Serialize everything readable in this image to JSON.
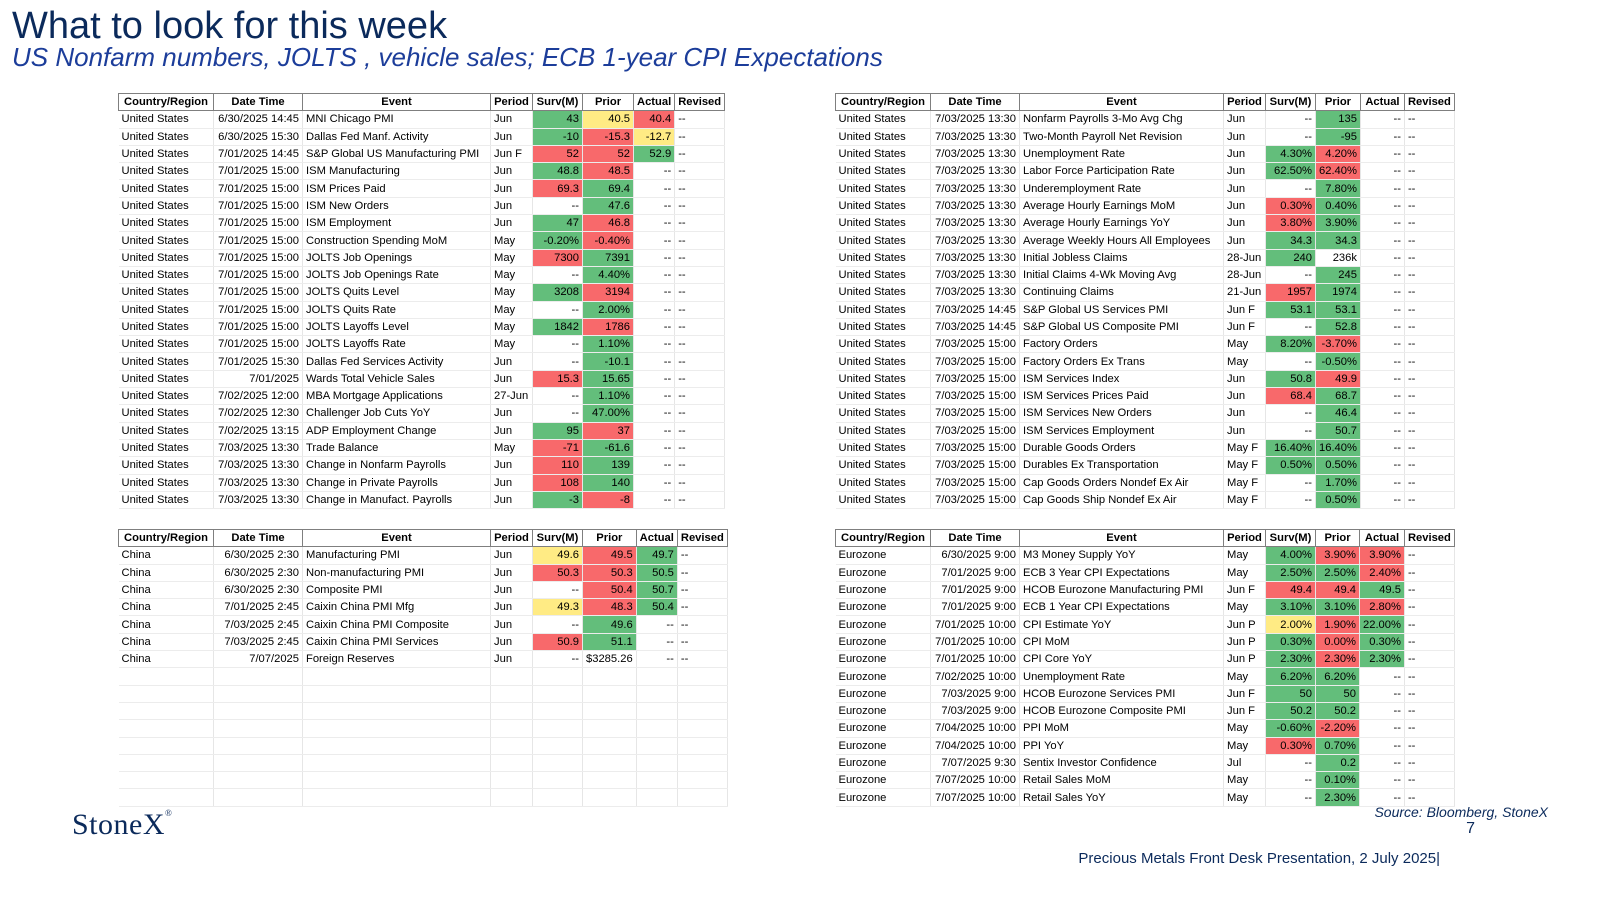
{
  "title": "What to look for this week",
  "subtitle": "US Nonfarm numbers, JOLTS , vehicle sales; ECB 1-year CPI Expectations",
  "headers": [
    "Country/Region",
    "Date Time",
    "Event",
    "Period",
    "Surv(M)",
    "Prior",
    "Actual",
    "Revised"
  ],
  "colors": {
    "green": "#63be7b",
    "red": "#f8696b",
    "yellow": "#ffeb84",
    "title": "#0b2a5b"
  },
  "tables": [
    {
      "id": "us-left",
      "rows": [
        [
          "United States",
          "6/30/2025 14:45",
          "MNI Chicago PMI",
          "Jun",
          "43",
          "40.5",
          "40.4",
          "--"
        ],
        [
          "United States",
          "6/30/2025 15:30",
          "Dallas Fed Manf. Activity",
          "Jun",
          "-10",
          "-15.3",
          "-12.7",
          "--"
        ],
        [
          "United States",
          "7/01/2025 14:45",
          "S&P Global US Manufacturing PMI",
          "Jun F",
          "52",
          "52",
          "52.9",
          "--"
        ],
        [
          "United States",
          "7/01/2025 15:00",
          "ISM Manufacturing",
          "Jun",
          "48.8",
          "48.5",
          "--",
          "--"
        ],
        [
          "United States",
          "7/01/2025 15:00",
          "ISM Prices Paid",
          "Jun",
          "69.3",
          "69.4",
          "--",
          "--"
        ],
        [
          "United States",
          "7/01/2025 15:00",
          "ISM New Orders",
          "Jun",
          "--",
          "47.6",
          "--",
          "--"
        ],
        [
          "United States",
          "7/01/2025 15:00",
          "ISM Employment",
          "Jun",
          "47",
          "46.8",
          "--",
          "--"
        ],
        [
          "United States",
          "7/01/2025 15:00",
          "Construction Spending MoM",
          "May",
          "-0.20%",
          "-0.40%",
          "--",
          "--"
        ],
        [
          "United States",
          "7/01/2025 15:00",
          "JOLTS Job Openings",
          "May",
          "7300",
          "7391",
          "--",
          "--"
        ],
        [
          "United States",
          "7/01/2025 15:00",
          "JOLTS Job Openings Rate",
          "May",
          "--",
          "4.40%",
          "--",
          "--"
        ],
        [
          "United States",
          "7/01/2025 15:00",
          "JOLTS Quits Level",
          "May",
          "3208",
          "3194",
          "--",
          "--"
        ],
        [
          "United States",
          "7/01/2025 15:00",
          "JOLTS Quits Rate",
          "May",
          "--",
          "2.00%",
          "--",
          "--"
        ],
        [
          "United States",
          "7/01/2025 15:00",
          "JOLTS Layoffs Level",
          "May",
          "1842",
          "1786",
          "--",
          "--"
        ],
        [
          "United States",
          "7/01/2025 15:00",
          "JOLTS Layoffs Rate",
          "May",
          "--",
          "1.10%",
          "--",
          "--"
        ],
        [
          "United States",
          "7/01/2025 15:30",
          "Dallas Fed Services Activity",
          "Jun",
          "--",
          "-10.1",
          "--",
          "--"
        ],
        [
          "United States",
          "7/01/2025",
          "Wards Total Vehicle Sales",
          "Jun",
          "15.3",
          "15.65",
          "--",
          "--"
        ],
        [
          "United States",
          "7/02/2025 12:00",
          "MBA Mortgage Applications",
          "27-Jun",
          "--",
          "1.10%",
          "--",
          "--"
        ],
        [
          "United States",
          "7/02/2025 12:30",
          "Challenger Job Cuts YoY",
          "Jun",
          "--",
          "47.00%",
          "--",
          "--"
        ],
        [
          "United States",
          "7/02/2025 13:15",
          "ADP Employment Change",
          "Jun",
          "95",
          "37",
          "--",
          "--"
        ],
        [
          "United States",
          "7/03/2025 13:30",
          "Trade Balance",
          "May",
          "-71",
          "-61.6",
          "--",
          "--"
        ],
        [
          "United States",
          "7/03/2025 13:30",
          "Change in Nonfarm Payrolls",
          "Jun",
          "110",
          "139",
          "--",
          "--"
        ],
        [
          "United States",
          "7/03/2025 13:30",
          "Change in Private Payrolls",
          "Jun",
          "108",
          "140",
          "--",
          "--"
        ],
        [
          "United States",
          "7/03/2025 13:30",
          "Change in Manufact. Payrolls",
          "Jun",
          "-3",
          "-8",
          "--",
          "--"
        ]
      ]
    },
    {
      "id": "us-right",
      "rows": [
        [
          "United States",
          "7/03/2025 13:30",
          "Nonfarm Payrolls 3-Mo Avg Chg",
          "Jun",
          "--",
          "135",
          "--",
          "--"
        ],
        [
          "United States",
          "7/03/2025 13:30",
          "Two-Month Payroll Net Revision",
          "Jun",
          "--",
          "-95",
          "--",
          "--"
        ],
        [
          "United States",
          "7/03/2025 13:30",
          "Unemployment Rate",
          "Jun",
          "4.30%",
          "4.20%",
          "--",
          "--"
        ],
        [
          "United States",
          "7/03/2025 13:30",
          "Labor Force Participation Rate",
          "Jun",
          "62.50%",
          "62.40%",
          "--",
          "--"
        ],
        [
          "United States",
          "7/03/2025 13:30",
          "Underemployment Rate",
          "Jun",
          "--",
          "7.80%",
          "--",
          "--"
        ],
        [
          "United States",
          "7/03/2025 13:30",
          "Average Hourly Earnings MoM",
          "Jun",
          "0.30%",
          "0.40%",
          "--",
          "--"
        ],
        [
          "United States",
          "7/03/2025 13:30",
          "Average Hourly Earnings YoY",
          "Jun",
          "3.80%",
          "3.90%",
          "--",
          "--"
        ],
        [
          "United States",
          "7/03/2025 13:30",
          "Average Weekly Hours All Employees",
          "Jun",
          "34.3",
          "34.3",
          "--",
          "--"
        ],
        [
          "United States",
          "7/03/2025 13:30",
          "Initial Jobless Claims",
          "28-Jun",
          "240",
          "236k",
          "--",
          "--"
        ],
        [
          "United States",
          "7/03/2025 13:30",
          "Initial Claims 4-Wk Moving Avg",
          "28-Jun",
          "--",
          "245",
          "--",
          "--"
        ],
        [
          "United States",
          "7/03/2025 13:30",
          "Continuing Claims",
          "21-Jun",
          "1957",
          "1974",
          "--",
          "--"
        ],
        [
          "United States",
          "7/03/2025 14:45",
          "S&P Global US Services PMI",
          "Jun F",
          "53.1",
          "53.1",
          "--",
          "--"
        ],
        [
          "United States",
          "7/03/2025 14:45",
          "S&P Global US Composite PMI",
          "Jun F",
          "--",
          "52.8",
          "--",
          "--"
        ],
        [
          "United States",
          "7/03/2025 15:00",
          "Factory Orders",
          "May",
          "8.20%",
          "-3.70%",
          "--",
          "--"
        ],
        [
          "United States",
          "7/03/2025 15:00",
          "Factory Orders Ex Trans",
          "May",
          "--",
          "-0.50%",
          "--",
          "--"
        ],
        [
          "United States",
          "7/03/2025 15:00",
          "ISM Services Index",
          "Jun",
          "50.8",
          "49.9",
          "--",
          "--"
        ],
        [
          "United States",
          "7/03/2025 15:00",
          "ISM Services Prices Paid",
          "Jun",
          "68.4",
          "68.7",
          "--",
          "--"
        ],
        [
          "United States",
          "7/03/2025 15:00",
          "ISM Services New Orders",
          "Jun",
          "--",
          "46.4",
          "--",
          "--"
        ],
        [
          "United States",
          "7/03/2025 15:00",
          "ISM Services Employment",
          "Jun",
          "--",
          "50.7",
          "--",
          "--"
        ],
        [
          "United States",
          "7/03/2025 15:00",
          "Durable Goods Orders",
          "May F",
          "16.40%",
          "16.40%",
          "--",
          "--"
        ],
        [
          "United States",
          "7/03/2025 15:00",
          "Durables Ex Transportation",
          "May F",
          "0.50%",
          "0.50%",
          "--",
          "--"
        ],
        [
          "United States",
          "7/03/2025 15:00",
          "Cap Goods Orders Nondef Ex Air",
          "May F",
          "--",
          "1.70%",
          "--",
          "--"
        ],
        [
          "United States",
          "7/03/2025 15:00",
          "Cap Goods Ship Nondef Ex Air",
          "May F",
          "--",
          "0.50%",
          "--",
          "--"
        ]
      ]
    },
    {
      "id": "china",
      "rows": [
        [
          "China",
          "6/30/2025 2:30",
          "Manufacturing PMI",
          "Jun",
          "49.6",
          "49.5",
          "49.7",
          "--"
        ],
        [
          "China",
          "6/30/2025 2:30",
          "Non-manufacturing PMI",
          "Jun",
          "50.3",
          "50.3",
          "50.5",
          "--"
        ],
        [
          "China",
          "6/30/2025 2:30",
          "Composite PMI",
          "Jun",
          "--",
          "50.4",
          "50.7",
          "--"
        ],
        [
          "China",
          "7/01/2025 2:45",
          "Caixin China PMI Mfg",
          "Jun",
          "49.3",
          "48.3",
          "50.4",
          "--"
        ],
        [
          "China",
          "7/03/2025 2:45",
          "Caixin China PMI Composite",
          "Jun",
          "--",
          "49.6",
          "--",
          "--"
        ],
        [
          "China",
          "7/03/2025 2:45",
          "Caixin China PMI Services",
          "Jun",
          "50.9",
          "51.1",
          "--",
          "--"
        ],
        [
          "China",
          "7/07/2025",
          "Foreign Reserves",
          "Jun",
          "--",
          "$3285.26",
          "--",
          "--"
        ],
        [
          "",
          "",
          "",
          "",
          "",
          "",
          "",
          ""
        ],
        [
          "",
          "",
          "",
          "",
          "",
          "",
          "",
          ""
        ],
        [
          "",
          "",
          "",
          "",
          "",
          "",
          "",
          ""
        ],
        [
          "",
          "",
          "",
          "",
          "",
          "",
          "",
          ""
        ],
        [
          "",
          "",
          "",
          "",
          "",
          "",
          "",
          ""
        ],
        [
          "",
          "",
          "",
          "",
          "",
          "",
          "",
          ""
        ],
        [
          "",
          "",
          "",
          "",
          "",
          "",
          "",
          ""
        ],
        [
          "",
          "",
          "",
          "",
          "",
          "",
          "",
          ""
        ]
      ]
    },
    {
      "id": "eurozone",
      "rows": [
        [
          "Eurozone",
          "6/30/2025 9:00",
          "M3 Money Supply YoY",
          "May",
          "4.00%",
          "3.90%",
          "3.90%",
          "--"
        ],
        [
          "Eurozone",
          "7/01/2025 9:00",
          "ECB 3 Year CPI Expectations",
          "May",
          "2.50%",
          "2.50%",
          "2.40%",
          "--"
        ],
        [
          "Eurozone",
          "7/01/2025 9:00",
          "HCOB Eurozone Manufacturing PMI",
          "Jun F",
          "49.4",
          "49.4",
          "49.5",
          "--"
        ],
        [
          "Eurozone",
          "7/01/2025 9:00",
          "ECB 1 Year CPI Expectations",
          "May",
          "3.10%",
          "3.10%",
          "2.80%",
          "--"
        ],
        [
          "Eurozone",
          "7/01/2025 10:00",
          "CPI Estimate YoY",
          "Jun P",
          "2.00%",
          "1.90%",
          "22.00%",
          "--"
        ],
        [
          "Eurozone",
          "7/01/2025 10:00",
          "CPI MoM",
          "Jun P",
          "0.30%",
          "0.00%",
          "0.30%",
          "--"
        ],
        [
          "Eurozone",
          "7/01/2025 10:00",
          "CPI Core YoY",
          "Jun P",
          "2.30%",
          "2.30%",
          "2.30%",
          "--"
        ],
        [
          "Eurozone",
          "7/02/2025 10:00",
          "Unemployment Rate",
          "May",
          "6.20%",
          "6.20%",
          "--",
          "--"
        ],
        [
          "Eurozone",
          "7/03/2025 9:00",
          "HCOB Eurozone Services PMI",
          "Jun F",
          "50",
          "50",
          "--",
          "--"
        ],
        [
          "Eurozone",
          "7/03/2025 9:00",
          "HCOB Eurozone Composite PMI",
          "Jun F",
          "50.2",
          "50.2",
          "--",
          "--"
        ],
        [
          "Eurozone",
          "7/04/2025 10:00",
          "PPI MoM",
          "May",
          "-0.60%",
          "-2.20%",
          "--",
          "--"
        ],
        [
          "Eurozone",
          "7/04/2025 10:00",
          "PPI YoY",
          "May",
          "0.30%",
          "0.70%",
          "--",
          "--"
        ],
        [
          "Eurozone",
          "7/07/2025 9:30",
          "Sentix Investor Confidence",
          "Jul",
          "--",
          "0.2",
          "--",
          "--"
        ],
        [
          "Eurozone",
          "7/07/2025 10:00",
          "Retail Sales MoM",
          "May",
          "--",
          "0.10%",
          "--",
          "--"
        ],
        [
          "Eurozone",
          "7/07/2025 10:00",
          "Retail Sales YoY",
          "May",
          "--",
          "2.30%",
          "--",
          "--"
        ]
      ]
    }
  ],
  "highlights": {
    "us-left": [
      [
        "g",
        "y",
        "r"
      ],
      [
        "g",
        "r",
        "y"
      ],
      [
        "r",
        "r",
        "g"
      ],
      [
        "g",
        "r",
        "",
        ""
      ],
      [
        "r",
        "g"
      ],
      [
        "",
        "g"
      ],
      [
        "g",
        "r"
      ],
      [
        "g",
        "r"
      ],
      [
        "r",
        "g"
      ],
      [
        "",
        "g"
      ],
      [
        "g",
        "r"
      ],
      [
        "",
        "g"
      ],
      [
        "g",
        "r"
      ],
      [
        "",
        "g"
      ],
      [
        "",
        "g"
      ],
      [
        "r",
        "g"
      ],
      [
        "",
        "g"
      ],
      [
        "",
        "g"
      ],
      [
        "g",
        "r"
      ],
      [
        "r",
        "g"
      ],
      [
        "r",
        "g"
      ],
      [
        "r",
        "g"
      ],
      [
        "g",
        "r"
      ]
    ],
    "us-right": [
      [
        "",
        "g"
      ],
      [
        "",
        "g"
      ],
      [
        "g",
        "r"
      ],
      [
        "g",
        "r"
      ],
      [
        "",
        "g"
      ],
      [
        "r",
        "g"
      ],
      [
        "r",
        "g"
      ],
      [
        "g",
        "g"
      ],
      [
        "g",
        ""
      ],
      [
        "",
        "g"
      ],
      [
        "r",
        "g"
      ],
      [
        "g",
        "g"
      ],
      [
        "",
        "g"
      ],
      [
        "g",
        "r"
      ],
      [
        "",
        "g"
      ],
      [
        "g",
        "r"
      ],
      [
        "r",
        "g"
      ],
      [
        "",
        "g"
      ],
      [
        "",
        "g"
      ],
      [
        "g",
        "g"
      ],
      [
        "g",
        "g"
      ],
      [
        "",
        "g"
      ],
      [
        "",
        "g"
      ]
    ],
    "china": [
      [
        "y",
        "r",
        "g"
      ],
      [
        "r",
        "r",
        "g"
      ],
      [
        "",
        "r",
        "g"
      ],
      [
        "y",
        "r",
        "g"
      ],
      [
        "",
        "g"
      ],
      [
        "r",
        "g"
      ],
      [
        "",
        ""
      ],
      [],
      [],
      [],
      [],
      [],
      [],
      [],
      []
    ],
    "eurozone": [
      [
        "g",
        "r",
        "r"
      ],
      [
        "g",
        "g",
        "r"
      ],
      [
        "r",
        "r",
        "g"
      ],
      [
        "g",
        "g",
        "r"
      ],
      [
        "y",
        "r",
        "g"
      ],
      [
        "g",
        "r",
        "g"
      ],
      [
        "g",
        "r",
        "g"
      ],
      [
        "g",
        "g"
      ],
      [
        "g",
        "g"
      ],
      [
        "g",
        "g"
      ],
      [
        "g",
        "r"
      ],
      [
        "r",
        "g"
      ],
      [
        "",
        "g"
      ],
      [
        "",
        "g"
      ],
      [
        "",
        "g"
      ]
    ]
  },
  "footer": {
    "logo": "StoneX",
    "logo_mark": "®",
    "source": "Source: Bloomberg, StoneX",
    "page_number": "7",
    "presentation": "Precious Metals Front Desk Presentation, 2 July 2025|"
  }
}
